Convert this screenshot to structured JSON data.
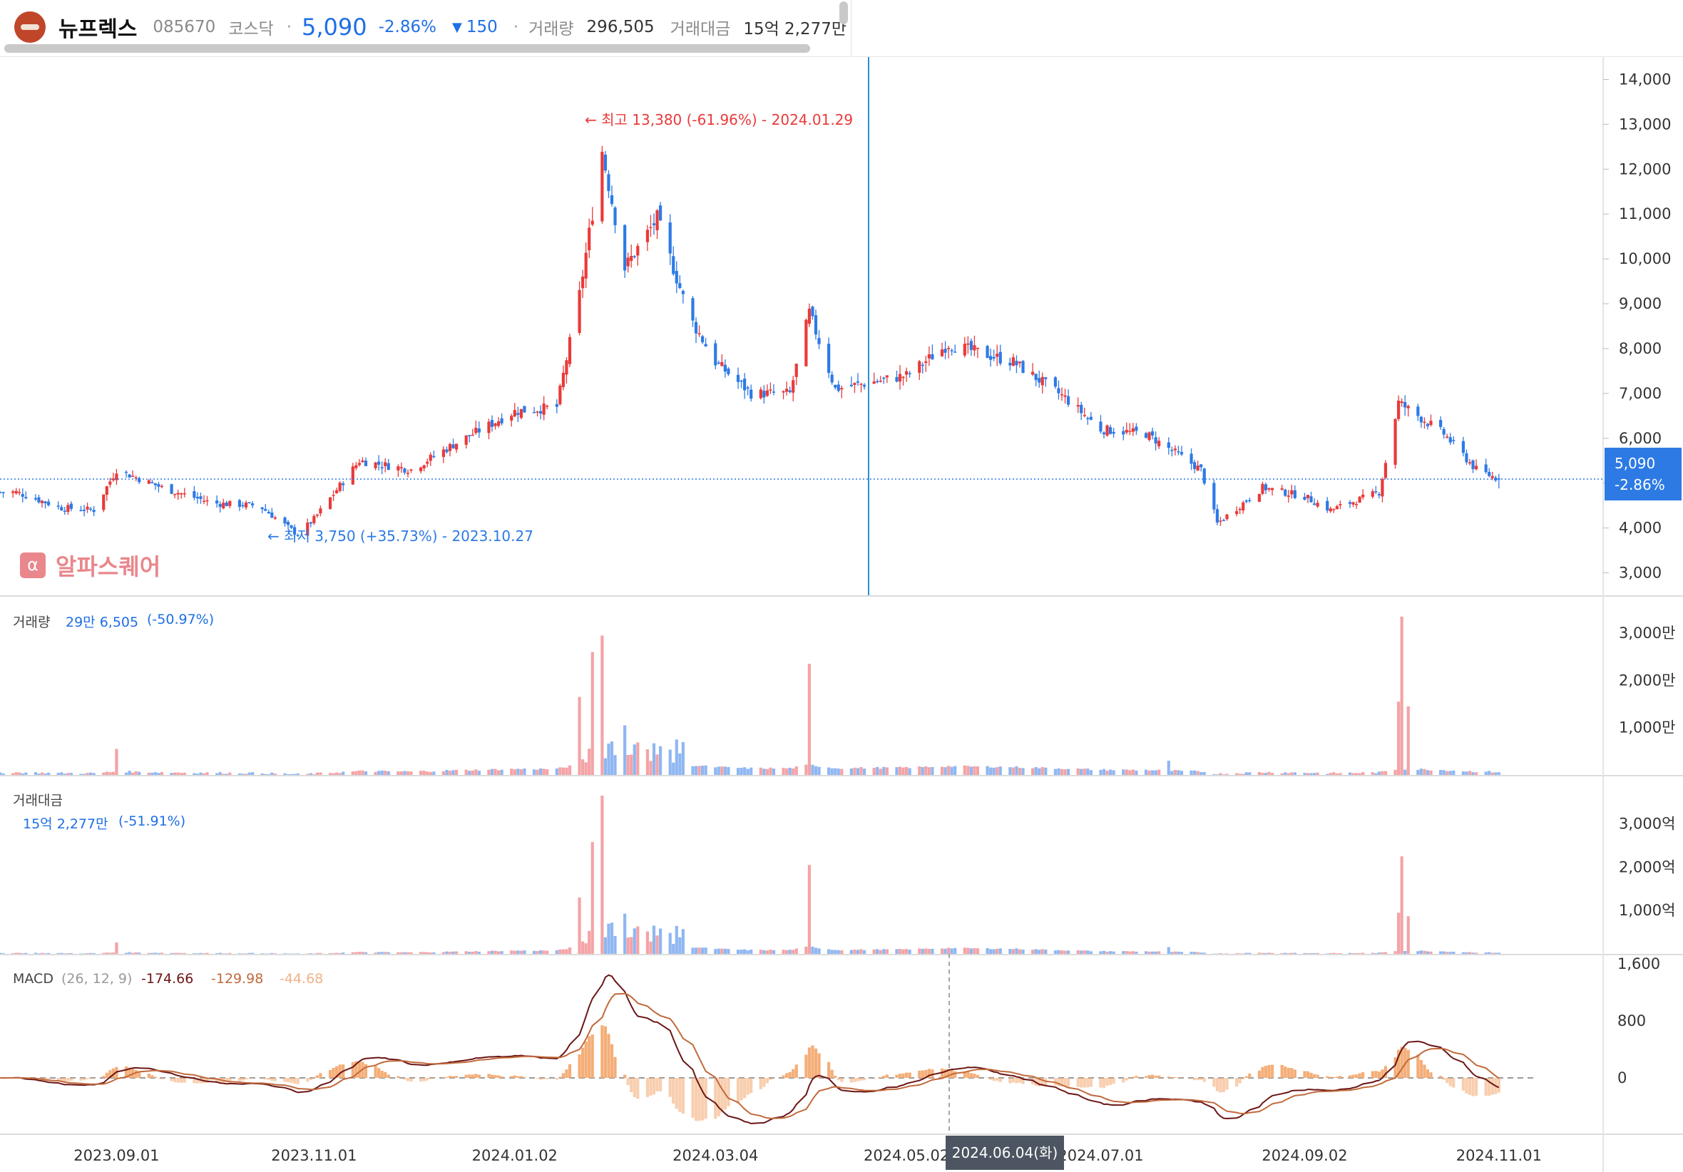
{
  "header": {
    "name": "뉴프렉스",
    "code": "085670",
    "market": "코스닥",
    "separator": "·",
    "price": "5,090",
    "change_pct": "-2.86%",
    "change_arrow": "▼",
    "change_amt": "150",
    "volume_label": "거래량",
    "volume": "296,505",
    "amount_label": "거래대금",
    "amount": "15억 2,277만"
  },
  "colors": {
    "up": "#ea3a3a",
    "down": "#2d7ae5",
    "up_light": "#f4a3a6",
    "down_light": "#8fb7f2",
    "macd": "#6b1616",
    "signal": "#c06a3c",
    "osc": "#f4ae78"
  },
  "price_panel": {
    "high_note": "최고 13,380 (-61.96%) - 2024.01.29",
    "low_note": "최저 3,750 (+35.73%) - 2023.10.27",
    "last_price": "5,090",
    "last_change": "-2.86%",
    "watermark": "알파스퀘어",
    "watermark_icon": "α",
    "arrow_glyph": "←"
  },
  "volume_panel": {
    "label": "거래량",
    "value": "29만 6,505",
    "change": "(-50.97%)"
  },
  "amount_panel": {
    "label": "거래대금",
    "value": "15억 2,277만",
    "change": "(-51.91%)"
  },
  "macd_panel": {
    "label": "MACD",
    "params": "(26, 12, 9)",
    "macd": "-174.66",
    "signal": "-129.98",
    "osc": "-44.68"
  },
  "crosshair_date": "2024.06.04(화)",
  "chart_data": {
    "type": "candlestick",
    "x_ticks": [
      "2023.09.01",
      "2023.11.01",
      "2024.01.02",
      "2024.03.04",
      "2024.05.02",
      "2024.07.01",
      "2024.09.02",
      "2024.11.01"
    ],
    "price_axis": {
      "ticks": [
        "3,000",
        "4,000",
        "5,000",
        "6,000",
        "7,000",
        "8,000",
        "9,000",
        "10,000",
        "11,000",
        "12,000",
        "13,000",
        "14,000"
      ],
      "ylim": [
        2500,
        14500
      ]
    },
    "volume_axis": {
      "ticks": [
        "1,000만",
        "2,000만",
        "3,000만"
      ],
      "ylim": [
        0,
        3500
      ]
    },
    "amount_axis": {
      "ticks": [
        "1,000억",
        "2,000억",
        "3,000억"
      ],
      "ylim": [
        0,
        3800
      ]
    },
    "macd_axis": {
      "ticks": [
        "1,600",
        "800",
        "0"
      ],
      "ylim": [
        -800,
        1600
      ]
    },
    "close_keypoints": [
      {
        "date": "2023.08.01",
        "close": 4800
      },
      {
        "date": "2023.08.15",
        "close": 4450
      },
      {
        "date": "2023.08.25",
        "close": 4400
      },
      {
        "date": "2023.09.01",
        "close": 5300
      },
      {
        "date": "2023.09.15",
        "close": 4900
      },
      {
        "date": "2023.10.01",
        "close": 4550
      },
      {
        "date": "2023.10.15",
        "close": 4500
      },
      {
        "date": "2023.10.27",
        "close": 3850
      },
      {
        "date": "2023.11.01",
        "close": 4200
      },
      {
        "date": "2023.11.15",
        "close": 5500
      },
      {
        "date": "2023.12.01",
        "close": 5300
      },
      {
        "date": "2023.12.15",
        "close": 5900
      },
      {
        "date": "2024.01.02",
        "close": 6600
      },
      {
        "date": "2024.01.15",
        "close": 6700
      },
      {
        "date": "2024.01.22",
        "close": 9200
      },
      {
        "date": "2024.01.29",
        "close": 12400
      },
      {
        "date": "2024.02.05",
        "close": 9800
      },
      {
        "date": "2024.02.15",
        "close": 10900
      },
      {
        "date": "2024.02.25",
        "close": 8700
      },
      {
        "date": "2024.03.04",
        "close": 7700
      },
      {
        "date": "2024.03.15",
        "close": 7000
      },
      {
        "date": "2024.03.27",
        "close": 7000
      },
      {
        "date": "2024.04.02",
        "close": 8800
      },
      {
        "date": "2024.04.10",
        "close": 7100
      },
      {
        "date": "2024.05.02",
        "close": 7400
      },
      {
        "date": "2024.05.15",
        "close": 8100
      },
      {
        "date": "2024.06.04",
        "close": 7700
      },
      {
        "date": "2024.06.20",
        "close": 6900
      },
      {
        "date": "2024.07.01",
        "close": 6200
      },
      {
        "date": "2024.07.15",
        "close": 6100
      },
      {
        "date": "2024.08.01",
        "close": 5300
      },
      {
        "date": "2024.08.06",
        "close": 4100
      },
      {
        "date": "2024.08.20",
        "close": 4900
      },
      {
        "date": "2024.09.02",
        "close": 4700
      },
      {
        "date": "2024.09.10",
        "close": 4400
      },
      {
        "date": "2024.09.25",
        "close": 4800
      },
      {
        "date": "2024.10.01",
        "close": 6800
      },
      {
        "date": "2024.10.15",
        "close": 6100
      },
      {
        "date": "2024.10.25",
        "close": 5300
      },
      {
        "date": "2024.11.01",
        "close": 5090
      }
    ],
    "volume_spikes_man": [
      {
        "date": "2023.09.01",
        "value": 550
      },
      {
        "date": "2024.01.22",
        "value": 1650
      },
      {
        "date": "2024.01.26",
        "value": 2600
      },
      {
        "date": "2024.01.29",
        "value": 2950
      },
      {
        "date": "2024.02.05",
        "value": 1050
      },
      {
        "date": "2024.04.02",
        "value": 2350
      },
      {
        "date": "2024.07.22",
        "value": 300
      },
      {
        "date": "2024.10.01",
        "value": 1550
      },
      {
        "date": "2024.10.02",
        "value": 3350
      },
      {
        "date": "2024.10.04",
        "value": 1450
      }
    ],
    "amount_spikes_eok": [
      {
        "date": "2024.01.22",
        "value": 1300
      },
      {
        "date": "2024.01.29",
        "value": 3650
      },
      {
        "date": "2024.04.02",
        "value": 2050
      },
      {
        "date": "2024.10.02",
        "value": 2250
      }
    ]
  }
}
